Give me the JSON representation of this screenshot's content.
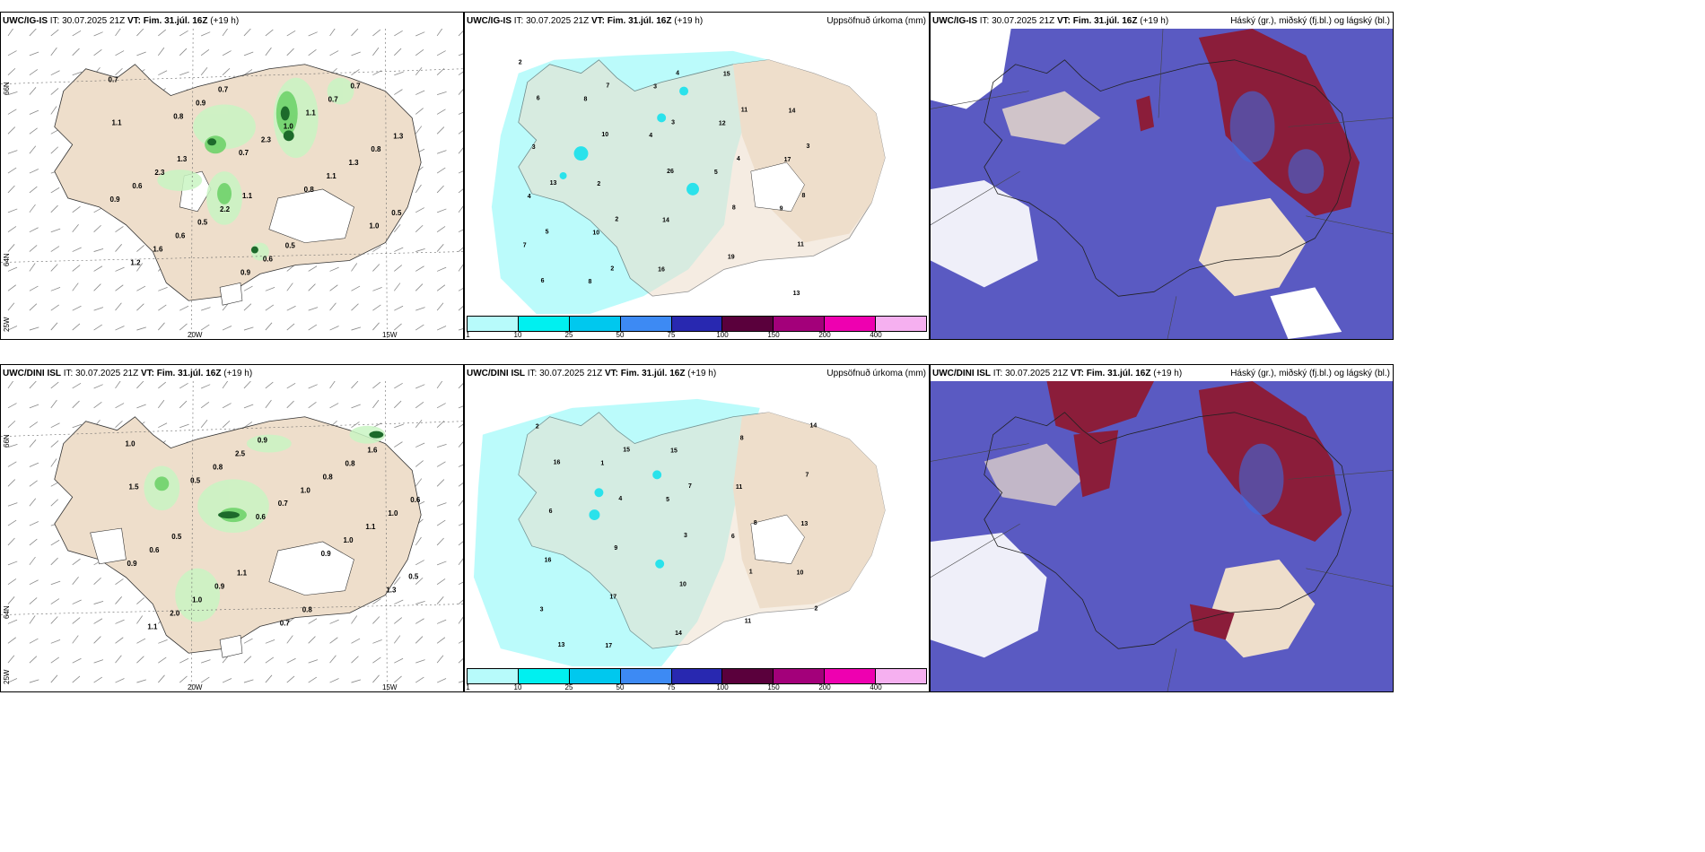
{
  "panels": {
    "p1": {
      "model": "UWC/IG-IS",
      "it_label": "IT:",
      "it": "30.07.2025 21Z",
      "vt_label": "VT:",
      "vt": "Fim. 31.júl. 16Z",
      "lead": "(+19 h)",
      "right": ""
    },
    "p2": {
      "model": "UWC/IG-IS",
      "it_label": "IT:",
      "it": "30.07.2025 21Z",
      "vt_label": "VT:",
      "vt": "Fim. 31.júl. 16Z",
      "lead": "(+19 h)",
      "right": "Uppsöfnuð úrkoma (mm)"
    },
    "p3": {
      "model": "UWC/IG-IS",
      "it_label": "IT:",
      "it": "30.07.2025 21Z",
      "vt_label": "VT:",
      "vt": "Fim. 31.júl. 16Z",
      "lead": "(+19 h)",
      "right": "Háský (gr.), miðský (fj.bl.) og lágský (bl.)"
    },
    "p4": {
      "model": "UWC/DINI ISL",
      "it_label": "IT:",
      "it": "30.07.2025 21Z",
      "vt_label": "VT:",
      "vt": "Fim. 31.júl. 16Z",
      "lead": "(+19 h)",
      "right": ""
    },
    "p5": {
      "model": "UWC/DINI ISL",
      "it_label": "IT:",
      "it": "30.07.2025 21Z",
      "vt_label": "VT:",
      "vt": "Fim. 31.júl. 16Z",
      "lead": "(+19 h)",
      "right": "Uppsöfnuð úrkoma (mm)"
    },
    "p6": {
      "model": "UWC/DINI ISL",
      "it_label": "IT:",
      "it": "30.07.2025 21Z",
      "vt_label": "VT:",
      "vt": "Fim. 31.júl. 16Z",
      "lead": "(+19 h)",
      "right": "Háský (gr.), miðský (fj.bl.) og lágský (bl.)"
    }
  },
  "axes": {
    "lon_20w": "20W",
    "lon_15w": "15W",
    "lat_66n": "66N",
    "lat_64n": "64N",
    "lon_25w": "25W"
  },
  "colorbar": {
    "ticks": [
      "1",
      "10",
      "25",
      "50",
      "75",
      "100",
      "150",
      "200",
      "400"
    ],
    "colors": [
      "#b7fbfb",
      "#00f0f0",
      "#00c8ee",
      "#3d8af4",
      "#2828b0",
      "#5a003c",
      "#a3007a",
      "#ee00b0",
      "#f6b0f0"
    ]
  },
  "top_wind_labels": [
    "0.7",
    "0.8",
    "0.7",
    "0.8",
    "1.0",
    "1.2",
    "0.9",
    "2.3",
    "1.1",
    "0.5",
    "1.6",
    "0.7",
    "1.0",
    "1.3",
    "0.9",
    "0.6",
    "0.9",
    "1.1",
    "0.8",
    "0.6",
    "0.5",
    "0.6",
    "0.7",
    "1.3",
    "2.3",
    "2.2",
    "0.5",
    "0.7",
    "1.1",
    "1.3",
    "1.1"
  ],
  "bot_wind_labels": [
    "1.0",
    "0.5",
    "0.6",
    "0.9",
    "1.3",
    "1.1",
    "0.8",
    "0.7",
    "1.0",
    "0.5",
    "2.0",
    "2.5",
    "1.0",
    "1.1",
    "0.9",
    "1.0",
    "0.9",
    "0.8",
    "1.0",
    "0.6",
    "0.9",
    "0.7",
    "0.8",
    "0.6",
    "0.5",
    "1.1",
    "0.8",
    "1.6",
    "1.5"
  ],
  "top_precip_labels": [
    "2",
    "8",
    "4",
    "5",
    "9",
    "7",
    "8",
    "3",
    "12",
    "17",
    "4",
    "10",
    "16",
    "15",
    "14",
    "3",
    "2",
    "14",
    "19",
    "13",
    "6",
    "10",
    "26",
    "8",
    "11",
    "6",
    "7",
    "3",
    "4",
    "8",
    "5",
    "2",
    "4",
    "11",
    "3",
    "13",
    "2"
  ],
  "bot_precip_labels": [
    "2",
    "1",
    "5",
    "6",
    "10",
    "3",
    "17",
    "15",
    "11",
    "13",
    "16",
    "17",
    "14",
    "8",
    "7",
    "6",
    "9",
    "10",
    "11",
    "14",
    "16",
    "4",
    "3",
    "1",
    "2",
    "13",
    "15",
    "7",
    "8"
  ],
  "colors": {
    "land": "#eedecb",
    "ocean": "#ffffff",
    "light_green": "#c9f5c3",
    "mid_green": "#6fd36b",
    "dark_green": "#1d6a2b",
    "precip_light": "#b7fbfb",
    "cloud_blue": "#5a5ac2",
    "cloud_red": "#8b1d3a"
  }
}
